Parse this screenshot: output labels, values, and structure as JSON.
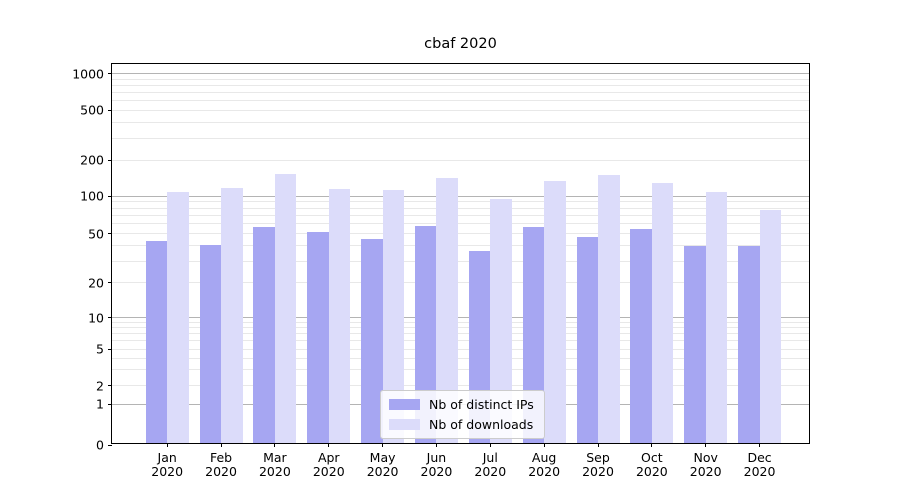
{
  "title": "cbaf 2020",
  "colors": {
    "bar_distinct_ips": "#a6a6f2",
    "bar_downloads": "#dcdcfa",
    "grid_major": "#b4b4b4",
    "grid_minor": "#e8e8e8",
    "spine": "#000000",
    "text": "#000000"
  },
  "legend": {
    "items": [
      {
        "label": "Nb of distinct IPs"
      },
      {
        "label": "Nb of downloads"
      }
    ]
  },
  "chart_data": {
    "type": "bar",
    "title": "cbaf 2020",
    "xlabel": "",
    "ylabel": "",
    "yscale": "symlog",
    "ytick_values": [
      0,
      1,
      2,
      5,
      10,
      20,
      50,
      100,
      200,
      500,
      1000
    ],
    "ytick_labels": [
      "0",
      "1",
      "2",
      "5",
      "10",
      "20",
      "50",
      "100",
      "200",
      "500",
      "1000"
    ],
    "ylim": [
      0,
      1200
    ],
    "grid": "on",
    "legend_position": "lower center",
    "categories": [
      "Jan",
      "Feb",
      "Mar",
      "Apr",
      "May",
      "Jun",
      "Jul",
      "Aug",
      "Sep",
      "Oct",
      "Nov",
      "Dec"
    ],
    "category_year": "2020",
    "series": [
      {
        "name": "Nb of distinct IPs",
        "color": "#a6a6f2",
        "values": [
          42,
          39,
          55,
          50,
          44,
          56,
          35,
          55,
          45,
          53,
          38,
          38
        ]
      },
      {
        "name": "Nb of downloads",
        "color": "#dcdcfa",
        "values": [
          105,
          112,
          147,
          111,
          108,
          136,
          91,
          130,
          145,
          123,
          104,
          74
        ]
      }
    ]
  }
}
